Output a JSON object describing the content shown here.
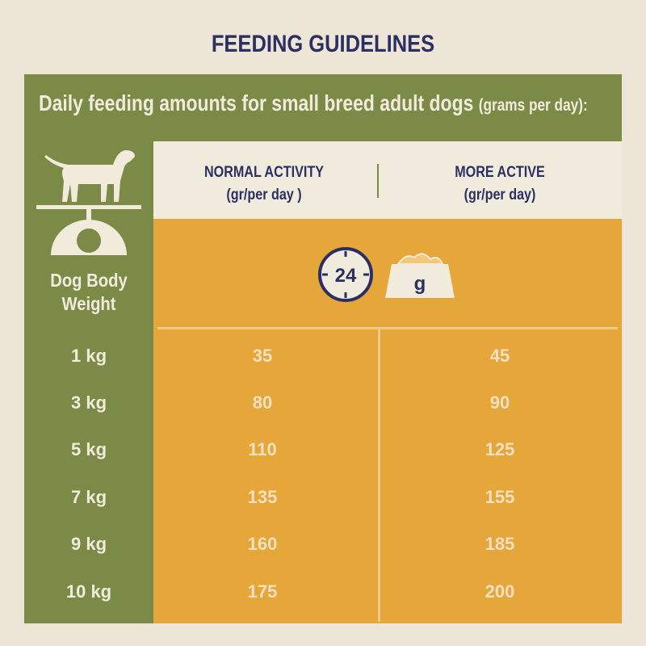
{
  "title": "FEEDING GUIDELINES",
  "subtitle": {
    "main": "Daily feeding amounts for small breed adult dogs",
    "unit": "(grams per day):"
  },
  "left_column": {
    "label": "Dog Body Weight",
    "icons": [
      "dog-icon",
      "scale-icon"
    ]
  },
  "columns": [
    {
      "name": "NORMAL ACTIVITY",
      "unit": "(gr/per day )"
    },
    {
      "name": "MORE ACTIVE",
      "unit": "(gr/per day)"
    }
  ],
  "icons": {
    "clock_label": "24",
    "bowl_label": "g"
  },
  "rows": [
    {
      "weight": "1 kg",
      "normal": "35",
      "active": "45"
    },
    {
      "weight": "3 kg",
      "normal": "80",
      "active": "90"
    },
    {
      "weight": "5 kg",
      "normal": "110",
      "active": "125"
    },
    {
      "weight": "7 kg",
      "normal": "135",
      "active": "155"
    },
    {
      "weight": "9 kg",
      "normal": "160",
      "active": "185"
    },
    {
      "weight": "10 kg",
      "normal": "175",
      "active": "200"
    }
  ],
  "colors": {
    "background": "#ede5d5",
    "green": "#7b8a46",
    "orange": "#e5a63a",
    "navy": "#2b2f63",
    "cream": "#f1ebdd"
  }
}
